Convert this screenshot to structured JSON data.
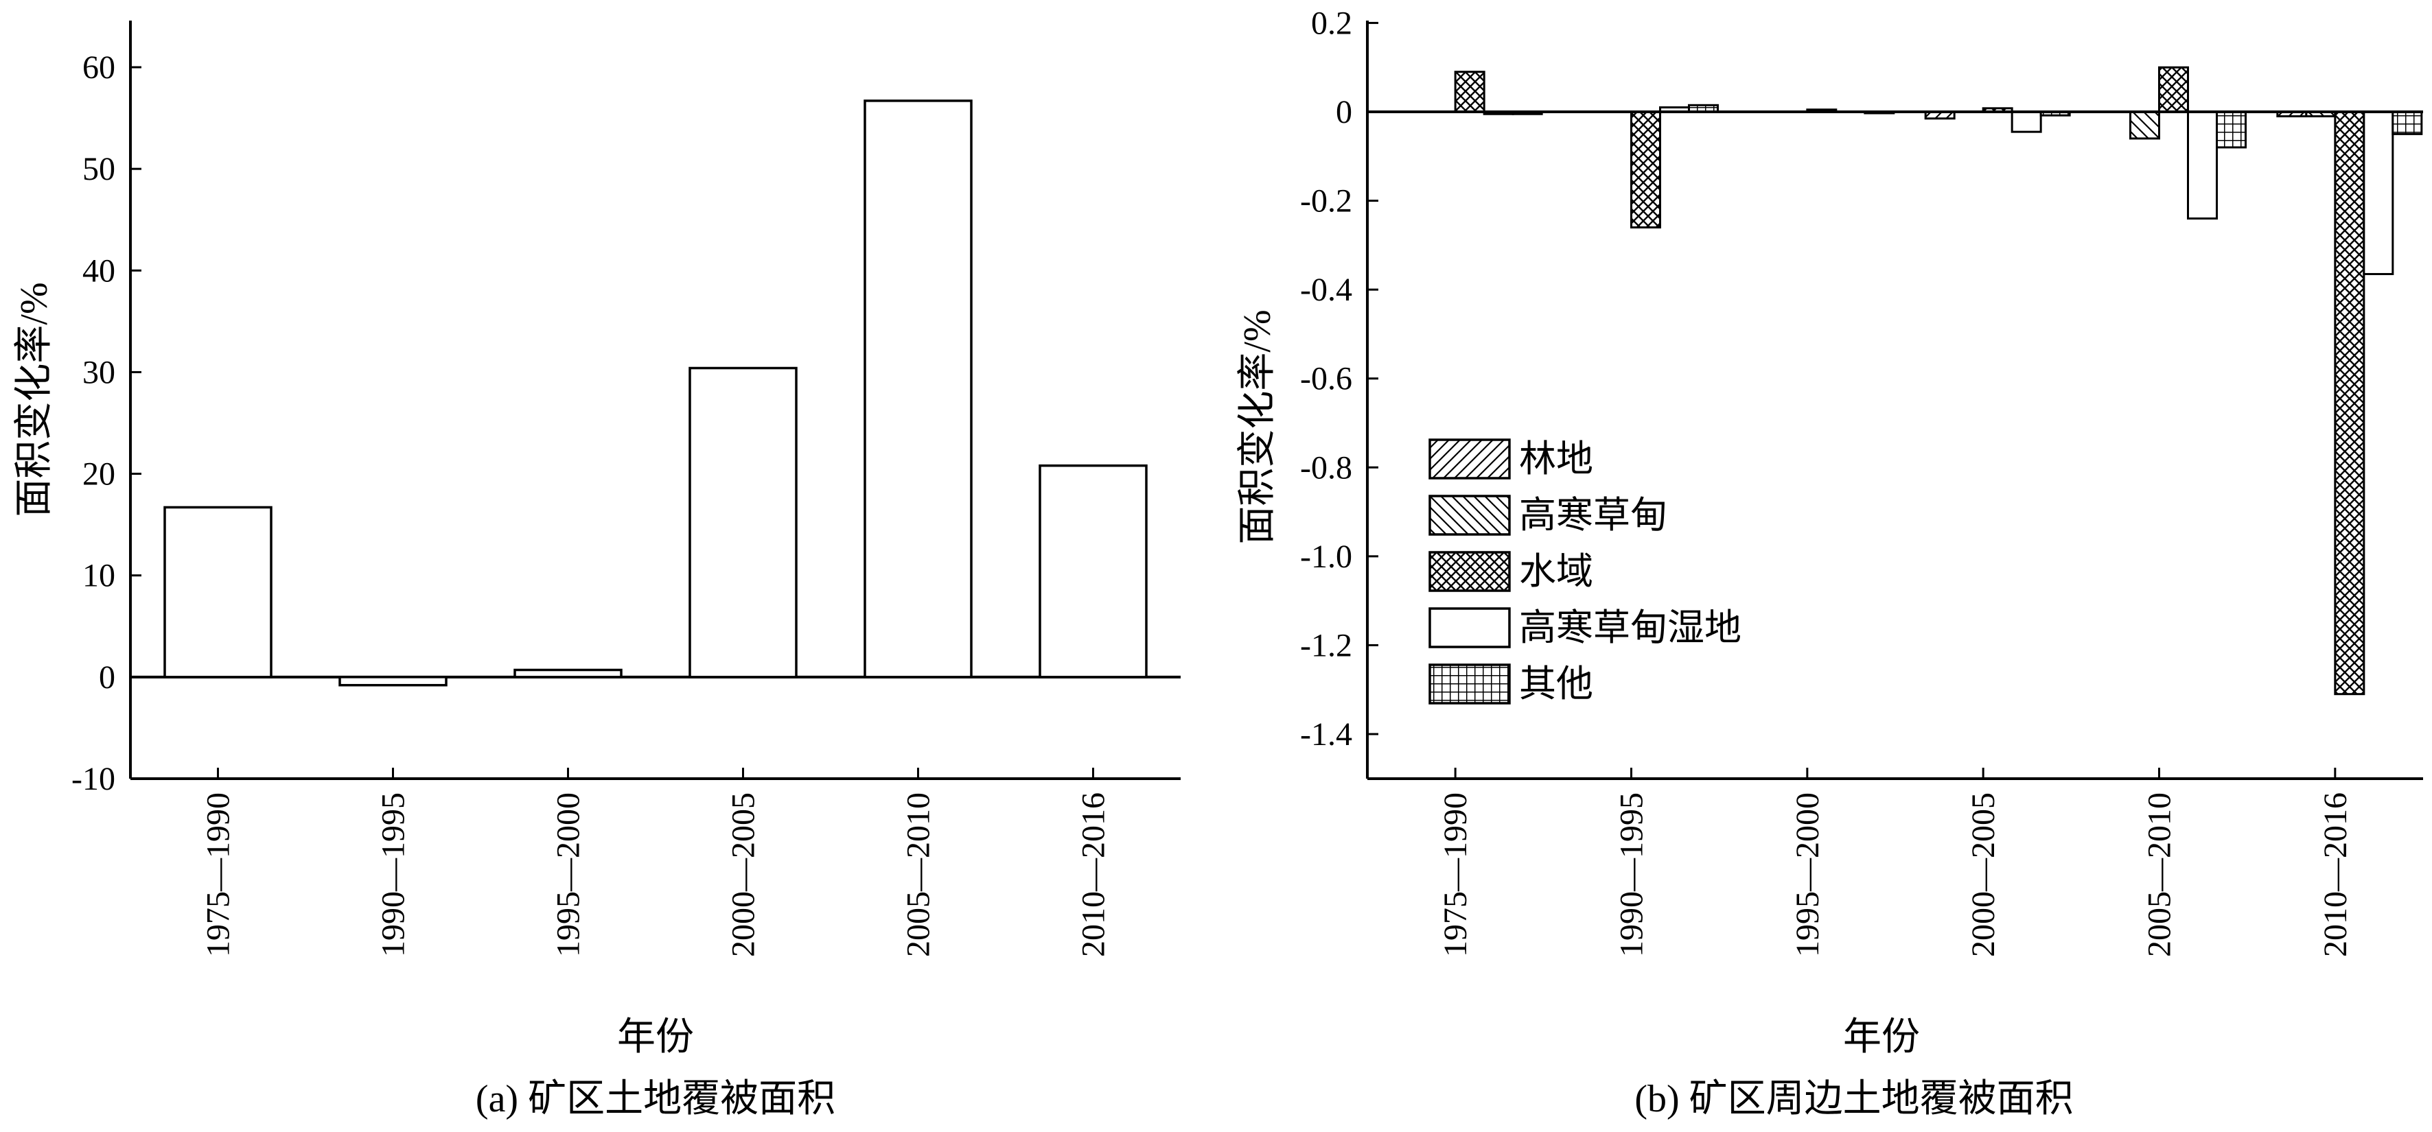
{
  "chart_data": [
    {
      "type": "bar",
      "categories": [
        "1975—1990",
        "1990—1995",
        "1995—2000",
        "2000—2005",
        "2005—2010",
        "2010—2016"
      ],
      "values": [
        16.7,
        -0.8,
        0.7,
        30.4,
        56.7,
        20.8
      ],
      "xlabel": "年份",
      "ylabel": "面积变化率/%",
      "ylim": [
        -10,
        65
      ],
      "yticks": [
        -10,
        0,
        10,
        20,
        30,
        40,
        50,
        60
      ],
      "ytick_labels": [
        "-10",
        "0",
        "10",
        "20",
        "30",
        "40",
        "50",
        "60"
      ],
      "caption": "(a) 矿区土地覆被面积",
      "grid": false,
      "legend": "none"
    },
    {
      "type": "bar",
      "categories": [
        "1975—1990",
        "1990—1995",
        "1995—2000",
        "2000—2005",
        "2005—2010",
        "2010—2016"
      ],
      "series": [
        {
          "name": "林地",
          "pattern": "diag-right",
          "values": [
            0,
            0,
            0,
            -0.015,
            0,
            -0.01
          ]
        },
        {
          "name": "高寒草甸",
          "pattern": "diag-left",
          "values": [
            0,
            0,
            0,
            0,
            -0.06,
            -0.01
          ]
        },
        {
          "name": "水域",
          "pattern": "crosshatch",
          "values": [
            0.09,
            -0.26,
            0.005,
            0.008,
            0.1,
            -1.31
          ]
        },
        {
          "name": "高寒草甸湿地",
          "pattern": "white",
          "values": [
            -0.005,
            0.01,
            0,
            -0.045,
            -0.24,
            -0.365
          ]
        },
        {
          "name": "其他",
          "pattern": "grid",
          "values": [
            -0.005,
            0.015,
            -0.003,
            -0.008,
            -0.08,
            -0.05
          ]
        }
      ],
      "xlabel": "年份",
      "ylabel": "面积变化率/%",
      "ylim": [
        -1.5,
        0.2
      ],
      "yticks": [
        -1.4,
        -1.2,
        -1.0,
        -0.8,
        -0.6,
        -0.4,
        -0.2,
        0,
        0.2
      ],
      "ytick_labels": [
        "-1.4",
        "-1.2",
        "-1.0",
        "-0.8",
        "-0.6",
        "-0.4",
        "-0.2",
        "0",
        "0.2"
      ],
      "caption": "(b) 矿区周边土地覆被面积",
      "grid": false,
      "legend": "center-left"
    }
  ]
}
